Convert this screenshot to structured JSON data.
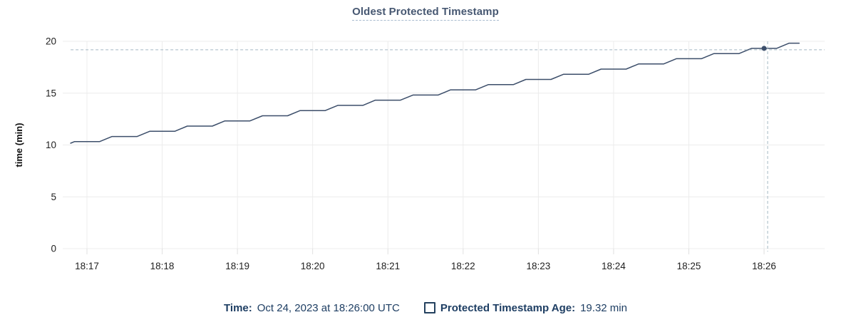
{
  "title": "Oldest Protected Timestamp",
  "legend": {
    "time_label": "Time:",
    "time_value": "Oct 24, 2023 at 18:26:00 UTC",
    "series_label": "Protected Timestamp Age:",
    "series_value": "19.32 min",
    "series_checkbox_icon": "empty-square-icon"
  },
  "colors": {
    "title": "#475872",
    "title_underline": "#a9bccf",
    "legend_text": "#1e3e63",
    "series_line": "#3c4e6a",
    "hover_point": "#3c4e6a",
    "crosshair": "#a4b7c3",
    "gridline": "#ececec",
    "axis_tick_mark": "#e0e0e0",
    "tick_text": "#222222",
    "axis_title_text": "#111111"
  },
  "chart_data": {
    "type": "line",
    "title": "Oldest Protected Timestamp",
    "xlabel": "",
    "ylabel": "time (min)",
    "ylim": [
      0,
      20
    ],
    "yticks": [
      0,
      5,
      10,
      15,
      20
    ],
    "xticks": [
      "18:17",
      "18:18",
      "18:19",
      "18:20",
      "18:21",
      "18:22",
      "18:23",
      "18:24",
      "18:25",
      "18:26"
    ],
    "grid": true,
    "legend_position": "bottom",
    "line_style": "stepped-ramp",
    "series": [
      {
        "name": "Protected Timestamp Age",
        "unit": "min",
        "x_offset_seconds_from_1817": [
          -13,
          -10,
          10,
          20,
          40,
          50,
          70,
          80,
          100,
          110,
          130,
          140,
          160,
          170,
          190,
          200,
          220,
          230,
          250,
          260,
          280,
          290,
          310,
          320,
          340,
          350,
          370,
          380,
          400,
          410,
          430,
          440,
          460,
          470,
          490,
          500,
          520,
          530,
          550,
          560,
          568
        ],
        "values_min": [
          10.17,
          10.32,
          10.32,
          10.82,
          10.82,
          11.32,
          11.32,
          11.82,
          11.82,
          12.32,
          12.32,
          12.82,
          12.82,
          13.32,
          13.32,
          13.82,
          13.82,
          14.32,
          14.32,
          14.82,
          14.82,
          15.32,
          15.32,
          15.82,
          15.82,
          16.32,
          16.32,
          16.82,
          16.82,
          17.32,
          17.32,
          17.82,
          17.82,
          18.32,
          18.32,
          18.82,
          18.82,
          19.32,
          19.32,
          19.82,
          19.82
        ]
      }
    ],
    "hover_point": {
      "time": "18:26:00",
      "x_offset_seconds_from_1817": 540,
      "value_min": 19.32,
      "crosshair": true
    }
  }
}
